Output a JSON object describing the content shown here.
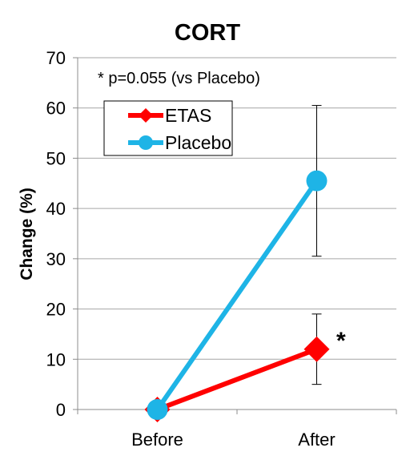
{
  "chart_data": {
    "type": "line",
    "title": "CORT",
    "xlabel": "",
    "ylabel": "Change (%)",
    "categories": [
      "Before",
      "After"
    ],
    "ylim": [
      0,
      70
    ],
    "yticks": [
      0,
      10,
      20,
      30,
      40,
      50,
      60,
      70
    ],
    "grid": true,
    "legend_position": "top-left",
    "annotation": "* p=0.055 (vs Placebo)",
    "significance_marker": "*",
    "series": [
      {
        "name": "ETAS",
        "color": "#ff0000",
        "marker": "diamond",
        "values": [
          0,
          12
        ],
        "error": [
          0,
          7
        ]
      },
      {
        "name": "Placebo",
        "color": "#1eb4e6",
        "marker": "circle",
        "values": [
          0,
          45.5
        ],
        "error": [
          0,
          15
        ]
      }
    ]
  }
}
